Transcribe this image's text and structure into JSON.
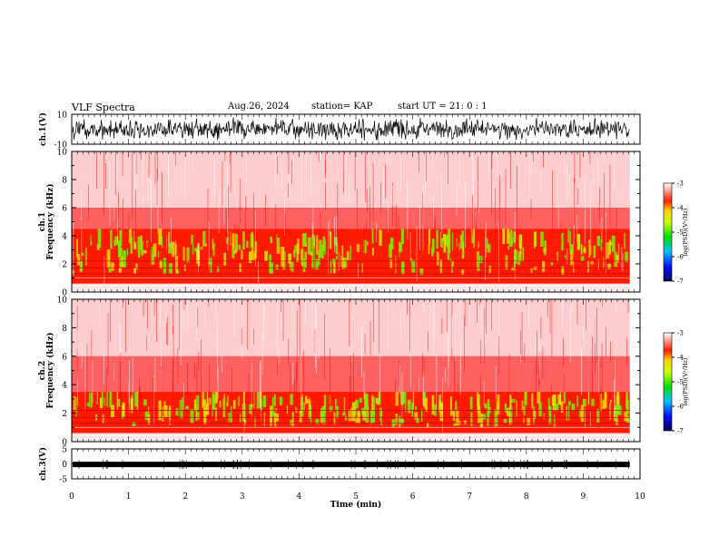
{
  "header": {
    "title": "VLF Spectra",
    "date": "Aug.26, 2024",
    "station": "station= KAP",
    "start": "start  UT  =   21: 0  : 1"
  },
  "chart_data": [
    {
      "type": "line",
      "title": "",
      "ylabel": "ch.1(V)",
      "ylim": [
        -10,
        10
      ],
      "yticks": [
        "10",
        "-10"
      ],
      "description_values": {
        "amplitude_range": [
          -8,
          8
        ],
        "mean": 0
      }
    },
    {
      "type": "heatmap",
      "ylabel": "ch.1\nFrequency  (kHz)",
      "ylim": [
        0,
        10
      ],
      "yticks": [
        "0",
        "2",
        "4",
        "6",
        "8",
        "10"
      ],
      "xlim": [
        0,
        10
      ],
      "green_band_khz": [
        1.2,
        4.5
      ],
      "colorbar": {
        "label": "log(PSD)(V²/Hz)",
        "range": [
          -7,
          -3
        ],
        "ticks": [
          "-3",
          "-4",
          "-5",
          "-6",
          "-7"
        ]
      }
    },
    {
      "type": "heatmap",
      "ylabel": "ch.2\nFrequency  (kHz)",
      "ylim": [
        0,
        10
      ],
      "yticks": [
        "0",
        "2",
        "4",
        "6",
        "8",
        "10"
      ],
      "xlim": [
        0,
        10
      ],
      "green_band_khz": [
        1.0,
        3.5
      ],
      "colorbar": {
        "label": "log(PSD)(V²/Hz)",
        "range": [
          -7,
          -3
        ],
        "ticks": [
          "-3",
          "-4",
          "-5",
          "-6",
          "-7"
        ]
      }
    },
    {
      "type": "line",
      "ylabel": "ch.3(V)",
      "ylim": [
        -5,
        5
      ],
      "yticks": [
        "5",
        "0",
        "-5"
      ],
      "xlabel": "Time  (min)",
      "xlim": [
        0,
        10
      ],
      "xticks": [
        "0",
        "1",
        "2",
        "3",
        "4",
        "5",
        "6",
        "7",
        "8",
        "9",
        "10"
      ],
      "description_values": {
        "level": -0.2
      }
    }
  ]
}
